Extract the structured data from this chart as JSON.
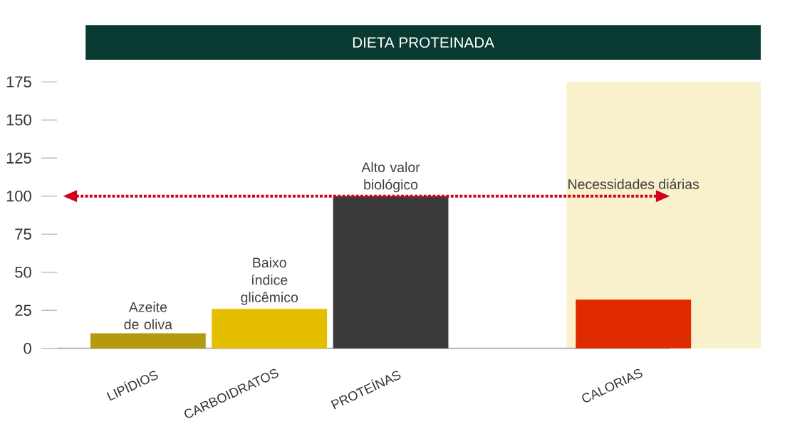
{
  "chart_data": {
    "type": "bar",
    "title": "DIETA PROTEINADA",
    "categories": [
      "LIPÍDIOS",
      "CARBOIDRATOS",
      "PROTEÍNAS",
      null,
      "CALORIAS"
    ],
    "values": [
      10,
      26,
      100,
      null,
      32
    ],
    "colors": [
      "#b59a10",
      "#e6be00",
      "#3a3a3a",
      "#ffffff",
      "#e02a00"
    ],
    "ylim": [
      0,
      175
    ],
    "yticks": [
      0,
      25,
      50,
      75,
      100,
      125,
      150,
      175
    ],
    "grid": false,
    "ref_lines": [
      {
        "axis": "y",
        "value": 100,
        "color": "#d0021b",
        "line_style": "dotted"
      }
    ],
    "annotations": [
      {
        "text": "Azeite de oliva",
        "x": "LIPÍDIOS",
        "y": 10
      },
      {
        "text": "Baixo índice glicêmico",
        "x": "CARBOIDRATOS",
        "y": 26
      },
      {
        "text": "Alto valor biológico",
        "x": "PROTEÍNAS",
        "y": 100
      },
      "Necessidades diárias"
    ]
  }
}
